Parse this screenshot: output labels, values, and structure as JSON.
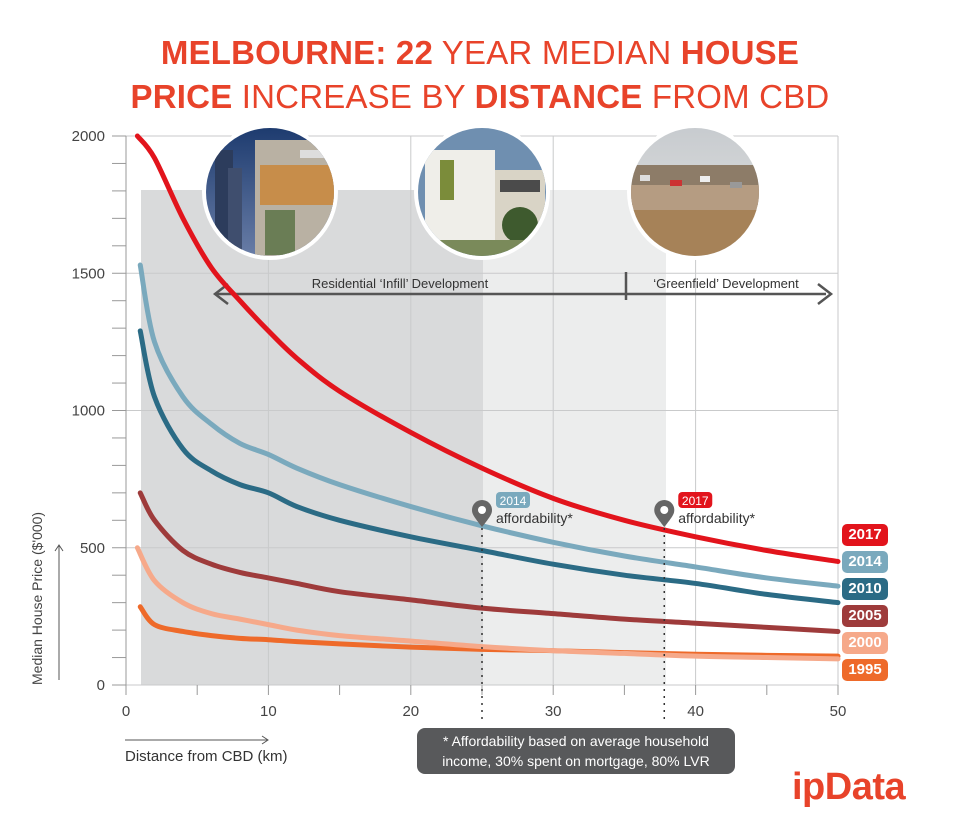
{
  "title": {
    "line1_a": "MELBOURNE: 22",
    "line1_b": "YEAR MEDIAN",
    "line1_c": "HOUSE",
    "line2_a": "PRICE",
    "line2_b": "INCREASE BY",
    "line2_c": "DISTANCE",
    "line2_d": "FROM CBD"
  },
  "logo": "ipData",
  "note": {
    "line1": "* Affordability based on average household",
    "line2": "income, 30% spent on mortgage, 80% LVR"
  },
  "zones": {
    "infill_label": "Residential ‘Infill’ Development",
    "greenfield_label": "‘Greenfield’ Development"
  },
  "affordability": [
    {
      "year": "2014",
      "label": "affordability*",
      "x": 25,
      "color": "#7aa9bd"
    },
    {
      "year": "2017",
      "label": "affordability*",
      "x": 37.8,
      "color": "#e2141c"
    }
  ],
  "photos": [
    {
      "name": "inner-city-apartments-photo"
    },
    {
      "name": "townhouse-development-photo"
    },
    {
      "name": "greenfield-suburb-photo"
    }
  ],
  "chart_data": {
    "type": "line",
    "title": "MELBOURNE: 22 YEAR MEDIAN HOUSE PRICE INCREASE BY DISTANCE FROM CBD",
    "xlabel": "Distance from CBD (km)",
    "ylabel": "Median House Price ($'000)",
    "xlim": [
      0,
      50
    ],
    "ylim": [
      0,
      2000
    ],
    "xticks": [
      0,
      10,
      20,
      30,
      40,
      50
    ],
    "yticks": [
      0,
      500,
      1000,
      1500,
      2000
    ],
    "grid": true,
    "series": [
      {
        "name": "2017",
        "color": "#e2141c",
        "x": [
          0.8,
          2,
          4,
          6,
          8,
          10,
          12,
          15,
          20,
          25,
          30,
          35,
          40,
          45,
          50
        ],
        "y": [
          2000,
          1920,
          1700,
          1520,
          1400,
          1290,
          1190,
          1070,
          920,
          790,
          680,
          600,
          540,
          490,
          450
        ]
      },
      {
        "name": "2014",
        "color": "#7aa9bd",
        "x": [
          1,
          2,
          4,
          6,
          8,
          10,
          12,
          15,
          20,
          25,
          30,
          35,
          40,
          45,
          50
        ],
        "y": [
          1530,
          1250,
          1050,
          950,
          880,
          840,
          790,
          730,
          650,
          580,
          520,
          470,
          430,
          390,
          360
        ]
      },
      {
        "name": "2010",
        "color": "#2b6b85",
        "x": [
          1,
          2,
          4,
          6,
          8,
          10,
          12,
          15,
          20,
          25,
          30,
          35,
          40,
          45,
          50
        ],
        "y": [
          1290,
          1050,
          860,
          780,
          730,
          700,
          650,
          600,
          540,
          490,
          440,
          400,
          370,
          330,
          300
        ]
      },
      {
        "name": "2005",
        "color": "#9e3b3b",
        "x": [
          1,
          2,
          4,
          6,
          8,
          10,
          12,
          15,
          20,
          25,
          30,
          35,
          40,
          45,
          50
        ],
        "y": [
          700,
          600,
          490,
          440,
          410,
          390,
          370,
          340,
          310,
          280,
          260,
          240,
          225,
          210,
          195
        ]
      },
      {
        "name": "2000",
        "color": "#f6a98a",
        "x": [
          0.8,
          2,
          4,
          6,
          8,
          10,
          12,
          15,
          20,
          25,
          30,
          35,
          40,
          45,
          50
        ],
        "y": [
          500,
          380,
          300,
          260,
          240,
          220,
          200,
          180,
          160,
          140,
          125,
          115,
          105,
          100,
          95
        ]
      },
      {
        "name": "1995",
        "color": "#ee6a2a",
        "x": [
          1,
          2,
          4,
          6,
          8,
          10,
          12,
          15,
          20,
          25,
          30,
          35,
          40,
          45,
          50
        ],
        "y": [
          285,
          220,
          195,
          180,
          170,
          165,
          158,
          150,
          138,
          130,
          125,
          118,
          112,
          108,
          105
        ]
      }
    ]
  }
}
